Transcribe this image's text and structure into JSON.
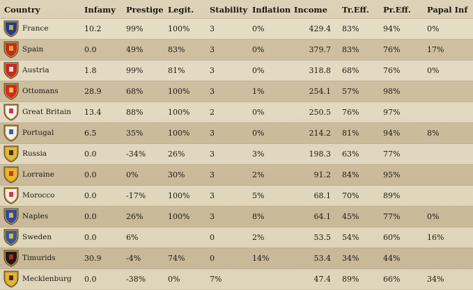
{
  "headers": {
    "country": "Country",
    "infamy": "Infamy",
    "prestige": "Prestige",
    "legit": "Legit.",
    "stability": "Stability",
    "inflation": "Inflation",
    "income": "Income",
    "tr_eff": "Tr.Eff.",
    "pr_eff": "Pr.Eff.",
    "papal_inf": "Papal Inf"
  },
  "rows": [
    {
      "country": "France",
      "shield": "france-shield-icon",
      "colors": [
        "#1f3d8c",
        "#d9b23a"
      ],
      "infamy": "10.2",
      "prestige": "99%",
      "legit": "100%",
      "stability": "3",
      "inflation": "0%",
      "income": "429.4",
      "tr_eff": "83%",
      "pr_eff": "94%",
      "papal_inf": "0%"
    },
    {
      "country": "Spain",
      "shield": "spain-shield-icon",
      "colors": [
        "#c8281e",
        "#e2b431"
      ],
      "infamy": "0.0",
      "prestige": "49%",
      "legit": "83%",
      "stability": "3",
      "inflation": "0%",
      "income": "379.7",
      "tr_eff": "83%",
      "pr_eff": "76%",
      "papal_inf": "17%"
    },
    {
      "country": "Austria",
      "shield": "austria-shield-icon",
      "colors": [
        "#c62a22",
        "#f2f0ea"
      ],
      "infamy": "1.8",
      "prestige": "99%",
      "legit": "81%",
      "stability": "3",
      "inflation": "0%",
      "income": "318.8",
      "tr_eff": "68%",
      "pr_eff": "76%",
      "papal_inf": "0%"
    },
    {
      "country": "Ottomans",
      "shield": "ottomans-shield-icon",
      "colors": [
        "#d8242a",
        "#f1d64a"
      ],
      "infamy": "28.9",
      "prestige": "68%",
      "legit": "100%",
      "stability": "3",
      "inflation": "1%",
      "income": "254.1",
      "tr_eff": "57%",
      "pr_eff": "98%",
      "papal_inf": ""
    },
    {
      "country": "Great Britain",
      "shield": "great-britain-shield-icon",
      "colors": [
        "#f3f1ec",
        "#cc2129"
      ],
      "infamy": "13.4",
      "prestige": "88%",
      "legit": "100%",
      "stability": "2",
      "inflation": "0%",
      "income": "250.5",
      "tr_eff": "76%",
      "pr_eff": "97%",
      "papal_inf": ""
    },
    {
      "country": "Portugal",
      "shield": "portugal-shield-icon",
      "colors": [
        "#f1efe8",
        "#2e4b9b"
      ],
      "infamy": "6.5",
      "prestige": "35%",
      "legit": "100%",
      "stability": "3",
      "inflation": "0%",
      "income": "214.2",
      "tr_eff": "81%",
      "pr_eff": "94%",
      "papal_inf": "8%"
    },
    {
      "country": "Russia",
      "shield": "russia-shield-icon",
      "colors": [
        "#e3b733",
        "#2a221a"
      ],
      "infamy": "0.0",
      "prestige": "-34%",
      "legit": "26%",
      "stability": "3",
      "inflation": "3%",
      "income": "198.3",
      "tr_eff": "63%",
      "pr_eff": "77%",
      "papal_inf": ""
    },
    {
      "country": "Lorraine",
      "shield": "lorraine-shield-icon",
      "colors": [
        "#e6b82c",
        "#c52a22"
      ],
      "infamy": "0.0",
      "prestige": "0%",
      "legit": "30%",
      "stability": "3",
      "inflation": "2%",
      "income": "91.2",
      "tr_eff": "84%",
      "pr_eff": "95%",
      "papal_inf": ""
    },
    {
      "country": "Morocco",
      "shield": "morocco-shield-icon",
      "colors": [
        "#f1ece2",
        "#c92a2a"
      ],
      "infamy": "0.0",
      "prestige": "-17%",
      "legit": "100%",
      "stability": "3",
      "inflation": "5%",
      "income": "68.1",
      "tr_eff": "70%",
      "pr_eff": "89%",
      "papal_inf": ""
    },
    {
      "country": "Naples",
      "shield": "naples-shield-icon",
      "colors": [
        "#2d49a3",
        "#e6c23a"
      ],
      "infamy": "0.0",
      "prestige": "26%",
      "legit": "100%",
      "stability": "3",
      "inflation": "8%",
      "income": "64.1",
      "tr_eff": "45%",
      "pr_eff": "77%",
      "papal_inf": "0%"
    },
    {
      "country": "Sweden",
      "shield": "sweden-shield-icon",
      "colors": [
        "#2f57a8",
        "#e7c13b"
      ],
      "infamy": "0.0",
      "prestige": "6%",
      "legit": "",
      "stability": "0",
      "inflation": "2%",
      "income": "53.5",
      "tr_eff": "54%",
      "pr_eff": "60%",
      "papal_inf": "16%"
    },
    {
      "country": "Timurids",
      "shield": "timurids-shield-icon",
      "colors": [
        "#1b1b1b",
        "#c8262a"
      ],
      "infamy": "30.9",
      "prestige": "-4%",
      "legit": "74%",
      "stability": "0",
      "inflation": "14%",
      "income": "53.4",
      "tr_eff": "34%",
      "pr_eff": "44%",
      "papal_inf": ""
    },
    {
      "country": "Mecklenburg",
      "shield": "mecklenburg-shield-icon",
      "colors": [
        "#e3b533",
        "#2a2118"
      ],
      "infamy": "0.0",
      "prestige": "-38%",
      "legit": "0%",
      "stability": "7%",
      "inflation": "",
      "income": "47.4",
      "tr_eff": "89%",
      "pr_eff": "66%",
      "papal_inf": "34%"
    }
  ]
}
